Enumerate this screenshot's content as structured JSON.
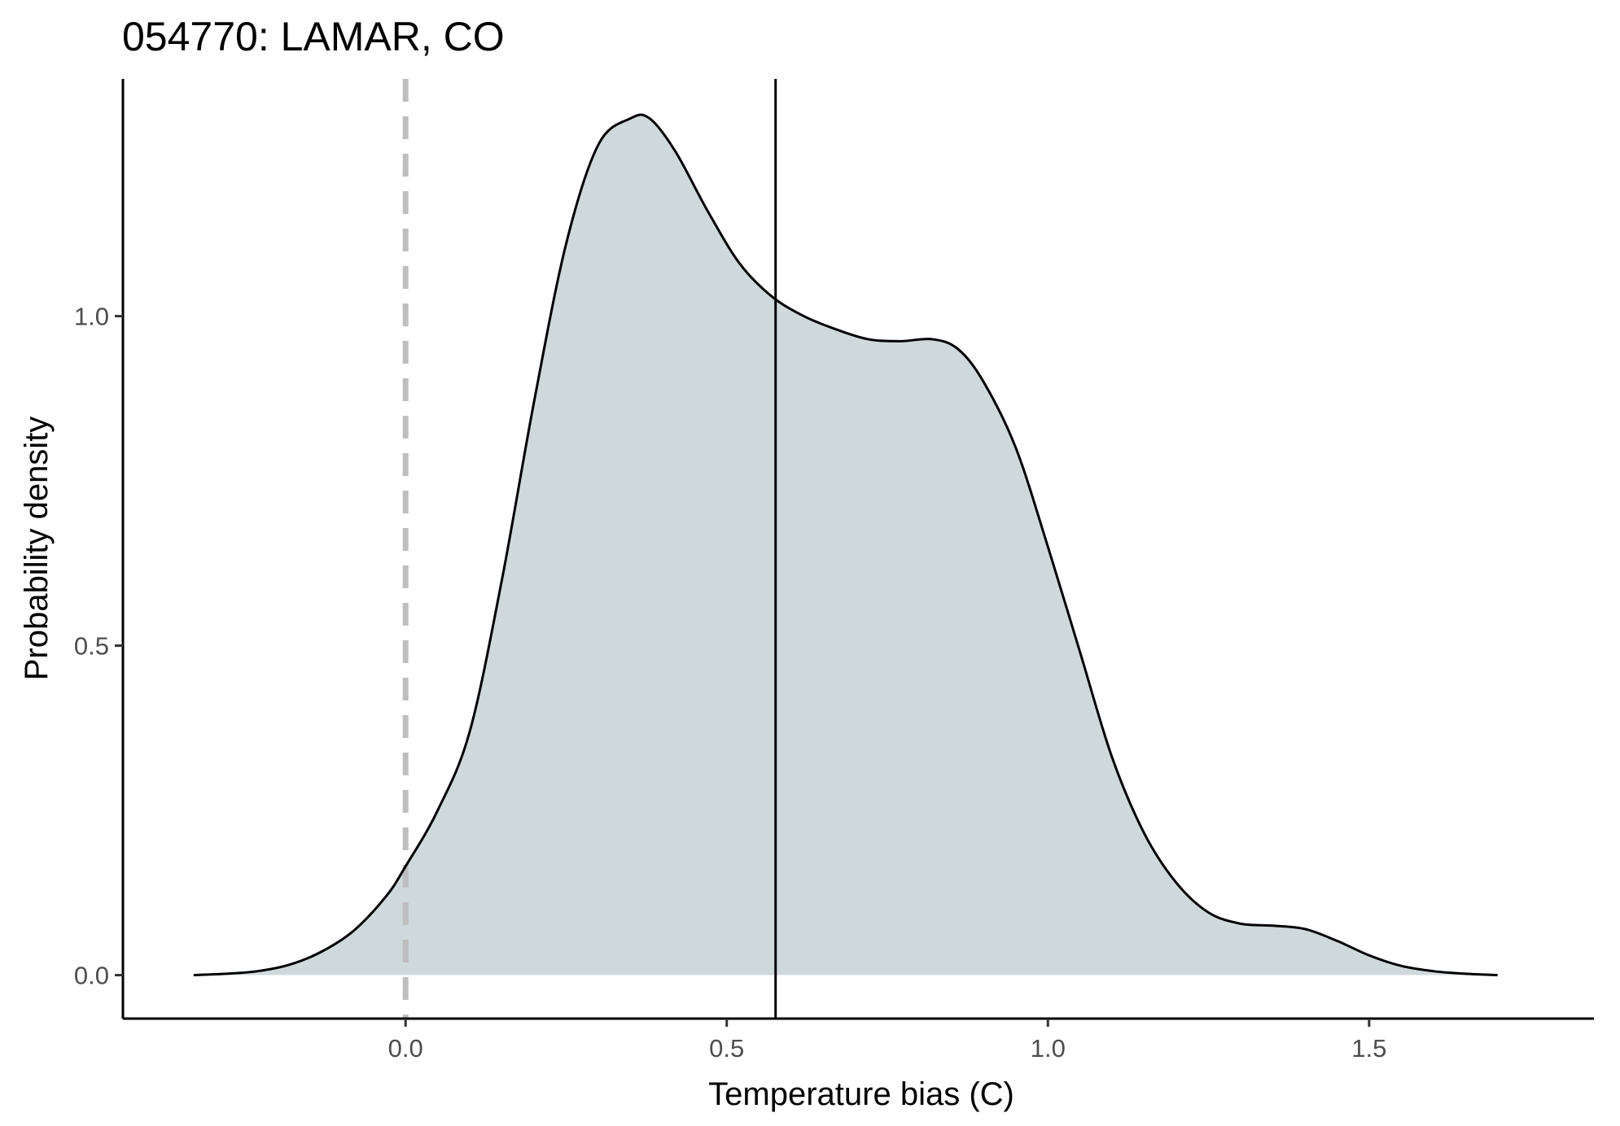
{
  "chart_data": {
    "type": "area",
    "title": "054770: LAMAR, CO",
    "xlabel": "Temperature bias (C)",
    "ylabel": "Probability density",
    "xlim": [
      -0.44,
      1.85
    ],
    "ylim": [
      -0.066,
      1.36
    ],
    "x_ticks": [
      0.0,
      0.5,
      1.0,
      1.5
    ],
    "x_tick_labels": [
      "0.0",
      "0.5",
      "1.0",
      "1.5"
    ],
    "y_ticks": [
      0.0,
      0.5,
      1.0
    ],
    "y_tick_labels": [
      "0.0",
      "0.5",
      "1.0"
    ],
    "grid": false,
    "reference_lines": [
      {
        "x": 0.0,
        "style": "dashed",
        "color": "#bebebe"
      },
      {
        "x": 0.576,
        "style": "solid",
        "color": "#000000"
      }
    ],
    "fill_color": "#cfd9dc",
    "line_color": "#000000",
    "series": [
      {
        "x": [
          -0.33,
          -0.28,
          -0.23,
          -0.18,
          -0.13,
          -0.08,
          -0.03,
          0.0,
          0.05,
          0.1,
          0.15,
          0.2,
          0.25,
          0.3,
          0.35,
          0.38,
          0.42,
          0.47,
          0.52,
          0.57,
          0.62,
          0.67,
          0.72,
          0.77,
          0.82,
          0.86,
          0.9,
          0.95,
          1.0,
          1.05,
          1.1,
          1.15,
          1.2,
          1.25,
          1.3,
          1.35,
          1.4,
          1.45,
          1.5,
          1.55,
          1.6,
          1.65,
          1.7
        ],
        "values": [
          0.0,
          0.002,
          0.006,
          0.016,
          0.036,
          0.068,
          0.12,
          0.165,
          0.25,
          0.37,
          0.6,
          0.87,
          1.11,
          1.26,
          1.3,
          1.3,
          1.25,
          1.16,
          1.08,
          1.03,
          1.0,
          0.98,
          0.965,
          0.962,
          0.965,
          0.95,
          0.9,
          0.8,
          0.65,
          0.49,
          0.33,
          0.215,
          0.14,
          0.095,
          0.078,
          0.075,
          0.07,
          0.052,
          0.03,
          0.014,
          0.006,
          0.002,
          0.0
        ]
      }
    ]
  }
}
